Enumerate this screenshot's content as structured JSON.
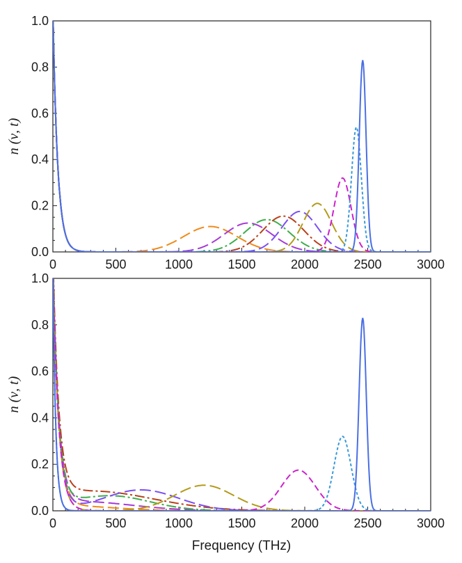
{
  "chart_data": [
    {
      "type": "line",
      "ylabel": "n (ν, t)",
      "xlabel": "",
      "xlim": [
        0,
        3000
      ],
      "ylim": [
        0,
        1.0
      ],
      "xticks": [
        "0",
        "500",
        "1000",
        "1500",
        "2000",
        "2500",
        "3000"
      ],
      "yticks": [
        "0.0",
        "0.2",
        "0.4",
        "0.6",
        "0.8",
        "1.0"
      ],
      "grid": false,
      "series": [
        {
          "color": "#4a6fe3",
          "dash": "solid",
          "center": 2460,
          "width": 38,
          "amp": 0.83,
          "lowtail": false
        },
        {
          "color": "#3a9ad9",
          "dash": "dotted",
          "center": 2410,
          "width": 55,
          "amp": 0.54,
          "lowtail": false
        },
        {
          "color": "#cc22cc",
          "dash": "dashed",
          "center": 2300,
          "width": 95,
          "amp": 0.32,
          "lowtail": true
        },
        {
          "color": "#b39a1a",
          "dash": "longdash",
          "center": 2100,
          "width": 160,
          "amp": 0.21,
          "lowtail": true
        },
        {
          "color": "#7b4ff0",
          "dash": "longdash",
          "center": 1960,
          "width": 200,
          "amp": 0.175,
          "lowtail": true
        },
        {
          "color": "#b8401a",
          "dash": "dashdot",
          "center": 1830,
          "width": 230,
          "amp": 0.155,
          "lowtail": true
        },
        {
          "color": "#3dae4a",
          "dash": "dashdot",
          "center": 1700,
          "width": 250,
          "amp": 0.14,
          "lowtail": true
        },
        {
          "color": "#a63ad6",
          "dash": "longdash",
          "center": 1550,
          "width": 270,
          "amp": 0.125,
          "lowtail": true
        },
        {
          "color": "#f08a1a",
          "dash": "longdash",
          "center": 1250,
          "width": 300,
          "amp": 0.11,
          "lowtail": true
        }
      ]
    },
    {
      "type": "line",
      "ylabel": "n (ν, t)",
      "xlabel": "Frequency (THz)",
      "xlim": [
        0,
        3000
      ],
      "ylim": [
        0,
        1.0
      ],
      "xticks": [
        "0",
        "500",
        "1000",
        "1500",
        "2000",
        "2500",
        "3000"
      ],
      "yticks": [
        "0.0",
        "0.2",
        "0.4",
        "0.6",
        "0.8",
        "1.0"
      ],
      "grid": false,
      "series": [
        {
          "color": "#4a6fe3",
          "dash": "solid",
          "center": 2460,
          "width": 40,
          "amp": 0.83,
          "lowtail": false
        },
        {
          "color": "#3a9ad9",
          "dash": "dotted",
          "center": 2300,
          "width": 95,
          "amp": 0.32,
          "lowtail": false
        },
        {
          "color": "#cc22cc",
          "dash": "dashed",
          "center": 1950,
          "width": 190,
          "amp": 0.175,
          "lowtail": true
        },
        {
          "color": "#b39a1a",
          "dash": "longdash",
          "center": 1200,
          "width": 330,
          "amp": 0.11,
          "lowtail": true
        },
        {
          "color": "#7b4ff0",
          "dash": "longdash",
          "center": 700,
          "width": 420,
          "amp": 0.09,
          "lowtail": true
        },
        {
          "color": "#3dae4a",
          "dash": "dashdot",
          "center": 450,
          "width": 450,
          "amp": 0.065,
          "lowtail": true
        },
        {
          "color": "#b8401a",
          "dash": "dashdot",
          "center": 300,
          "width": 700,
          "amp": 0.085,
          "lowtail": true
        },
        {
          "color": "#a63ad6",
          "dash": "longdash",
          "center": 200,
          "width": 600,
          "amp": 0.04,
          "lowtail": true
        },
        {
          "color": "#f08a1a",
          "dash": "longdash",
          "center": 150,
          "width": 500,
          "amp": 0.02,
          "lowtail": true
        }
      ]
    }
  ]
}
